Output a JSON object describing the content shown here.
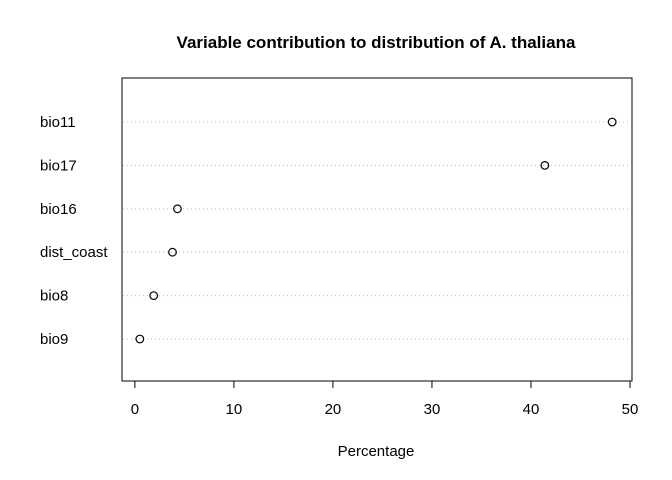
{
  "chart_data": {
    "type": "scatter",
    "title": "Variable contribution to distribution of A. thaliana",
    "xlabel": "Percentage",
    "ylabel": "",
    "xlim": [
      -1.3,
      50.2
    ],
    "xticks": [
      "0",
      "10",
      "20",
      "30",
      "40",
      "50"
    ],
    "xtick_values": [
      0,
      10,
      20,
      30,
      40,
      50
    ],
    "categories": [
      "bio11",
      "bio17",
      "bio16",
      "dist_coast",
      "bio8",
      "bio9"
    ],
    "values": [
      48.2,
      41.4,
      4.3,
      3.8,
      1.9,
      0.5
    ],
    "grid": "dotted horizontal guide lines per category",
    "legend": "none",
    "colors": {
      "points": "#000000",
      "guides": "#bebebe",
      "frame": "#000000"
    }
  }
}
